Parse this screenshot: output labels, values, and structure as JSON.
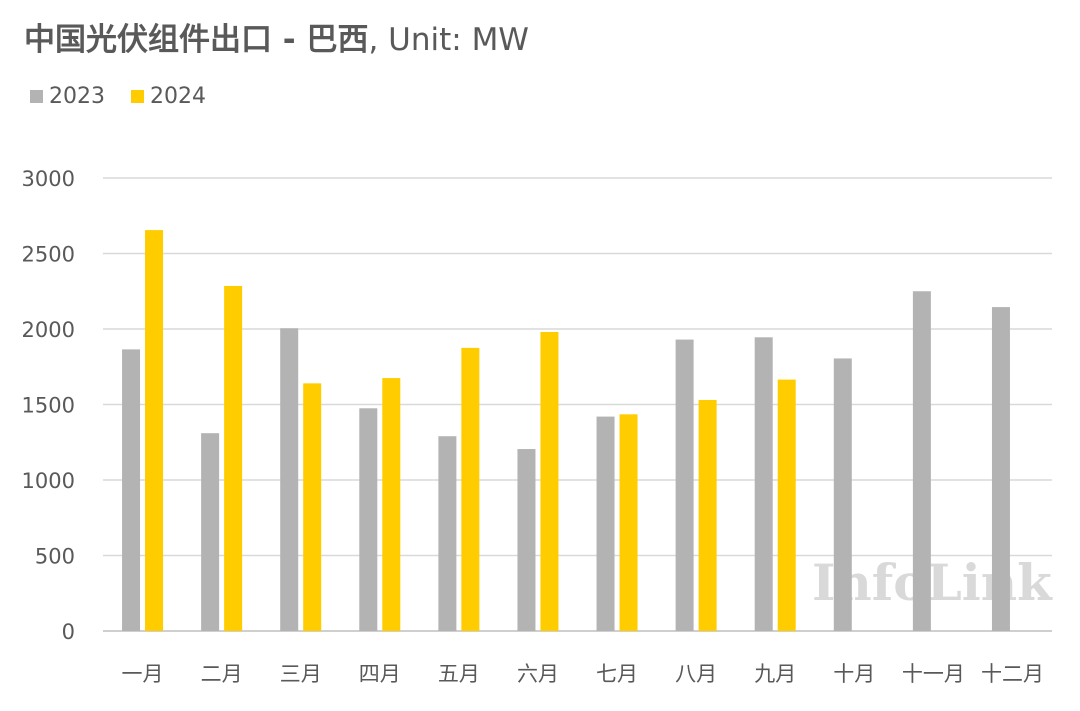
{
  "chart_data": {
    "type": "bar",
    "title_bold": "中国光伏组件出口 - 巴西",
    "title_rest": ", Unit: MW",
    "categories": [
      "一月",
      "二月",
      "三月",
      "四月",
      "五月",
      "六月",
      "七月",
      "八月",
      "九月",
      "十月",
      "十一月",
      "十二月"
    ],
    "series": [
      {
        "name": "2023",
        "color": "#b3b3b3",
        "values": [
          1865,
          1310,
          2005,
          1475,
          1290,
          1205,
          1420,
          1930,
          1945,
          1805,
          2250,
          2145
        ]
      },
      {
        "name": "2024",
        "color": "#ffcc00",
        "values": [
          2655,
          2285,
          1640,
          1675,
          1875,
          1980,
          1435,
          1530,
          1665,
          null,
          null,
          null
        ]
      }
    ],
    "ylim": [
      0,
      3000
    ],
    "yticks": [
      0,
      500,
      1000,
      1500,
      2000,
      2500,
      3000
    ],
    "grid": true,
    "legend_position": "top-left",
    "watermark": "InfoLink"
  }
}
